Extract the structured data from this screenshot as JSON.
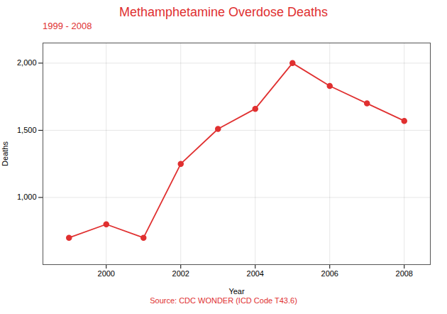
{
  "chart_data": {
    "type": "line",
    "title": "Methamphetamine Overdose Deaths",
    "subtitle": "1999 - 2008",
    "source": "Source: CDC WONDER (ICD Code T43.6)",
    "xlabel": "Year",
    "ylabel": "Deaths",
    "x": [
      1999,
      2000,
      2001,
      2002,
      2003,
      2004,
      2005,
      2006,
      2007,
      2008
    ],
    "values": [
      700,
      800,
      700,
      1250,
      1510,
      1660,
      2000,
      1830,
      1700,
      1570
    ],
    "color": "#e03030",
    "marker": "circle",
    "xlim": [
      1998.3,
      2008.7
    ],
    "xticks": [
      2000,
      2002,
      2004,
      2006,
      2008
    ],
    "ylim": [
      500,
      2150
    ],
    "yticks": [
      {
        "value": 1000,
        "label": "1,000"
      },
      {
        "value": 1500,
        "label": "1,500"
      },
      {
        "value": 2000,
        "label": "2,000"
      }
    ],
    "grid": true
  }
}
